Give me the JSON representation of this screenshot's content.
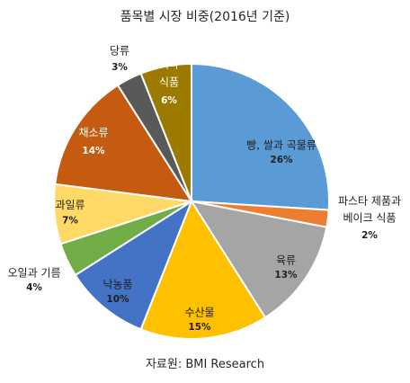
{
  "chart_data": {
    "type": "pie",
    "title": "품목별 시장 비중(2016년 기준)",
    "source": "자료원: BMI Research",
    "slices": [
      {
        "label_lines": [
          "빵, 쌀과 곡물류"
        ],
        "value": 26,
        "pct": "26%",
        "color": "#5b9bd5",
        "label_color": "#1f1f1f"
      },
      {
        "label_lines": [
          "파스타 제품과",
          "베이크 식품"
        ],
        "value": 2,
        "pct": "2%",
        "color": "#ed7d31",
        "label_color": "#1f1f1f"
      },
      {
        "label_lines": [
          "육류"
        ],
        "value": 13,
        "pct": "13%",
        "color": "#a5a5a5",
        "label_color": "#1f1f1f"
      },
      {
        "label_lines": [
          "수산물"
        ],
        "value": 15,
        "pct": "15%",
        "color": "#ffc000",
        "label_color": "#1f1f1f"
      },
      {
        "label_lines": [
          "낙농품"
        ],
        "value": 10,
        "pct": "10%",
        "color": "#4472c4",
        "label_color": "#1f1f1f"
      },
      {
        "label_lines": [
          "오일과 기름"
        ],
        "value": 4,
        "pct": "4%",
        "color": "#70ad47",
        "label_color": "#1f1f1f"
      },
      {
        "label_lines": [
          "과일류"
        ],
        "value": 7,
        "pct": "7%",
        "color": "#ffd966",
        "label_color": "#1f1f1f"
      },
      {
        "label_lines": [
          "채소류"
        ],
        "value": 14,
        "pct": "14%",
        "color": "#c55a11",
        "label_color": "#ffffff"
      },
      {
        "label_lines": [
          "당류"
        ],
        "value": 3,
        "pct": "3%",
        "color": "#595959",
        "label_color": "#1f1f1f"
      },
      {
        "label_lines": [
          "기타",
          "식품"
        ],
        "value": 6,
        "pct": "6%",
        "color": "#9c7a00",
        "label_color": "#ffffff"
      }
    ]
  }
}
